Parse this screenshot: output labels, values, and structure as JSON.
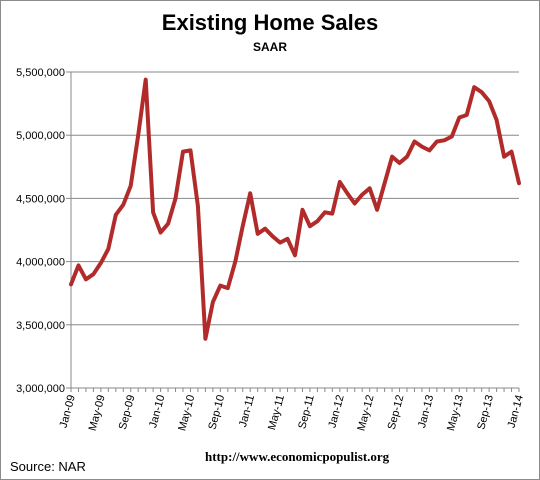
{
  "page": {
    "source_label": "Source:  NAR",
    "url_label": "http://www.economicpopulist.org"
  },
  "colors": {
    "line": "#b22b2b",
    "grid": "#888888",
    "axis": "#888888",
    "background": "#ffffff"
  },
  "chart_data": {
    "type": "line",
    "title": "Existing Home Sales",
    "subtitle": "SAAR",
    "xlabel": "",
    "ylabel": "",
    "ylim": [
      3000000,
      5500000
    ],
    "yticks": [
      3000000,
      3500000,
      4000000,
      4500000,
      5000000,
      5500000
    ],
    "ytick_labels": [
      "3,000,000",
      "3,500,000",
      "4,000,000",
      "4,500,000",
      "5,000,000",
      "5,500,000"
    ],
    "grid": true,
    "xtick_labels": [
      "Jan-09",
      "May-09",
      "Sep-09",
      "Jan-10",
      "May-10",
      "Sep-10",
      "Jan-11",
      "May-11",
      "Sep-11",
      "Jan-12",
      "May-12",
      "Sep-12",
      "Jan-13",
      "May-13",
      "Sep-13",
      "Jan-14"
    ],
    "xtick_every": 4,
    "series": [
      {
        "values": [
          3820000,
          3970000,
          3860000,
          3900000,
          3990000,
          4100000,
          4370000,
          4450000,
          4600000,
          5000000,
          5440000,
          4390000,
          4230000,
          4300000,
          4500000,
          4870000,
          4880000,
          4440000,
          3390000,
          3680000,
          3810000,
          3790000,
          4000000,
          4280000,
          4540000,
          4220000,
          4260000,
          4200000,
          4150000,
          4180000,
          4050000,
          4410000,
          4280000,
          4320000,
          4390000,
          4380000,
          4630000,
          4540000,
          4460000,
          4530000,
          4580000,
          4410000,
          4620000,
          4830000,
          4780000,
          4830000,
          4950000,
          4910000,
          4880000,
          4950000,
          4960000,
          4990000,
          5140000,
          5160000,
          5380000,
          5340000,
          5270000,
          5120000,
          4830000,
          4870000,
          4620000
        ]
      }
    ]
  }
}
